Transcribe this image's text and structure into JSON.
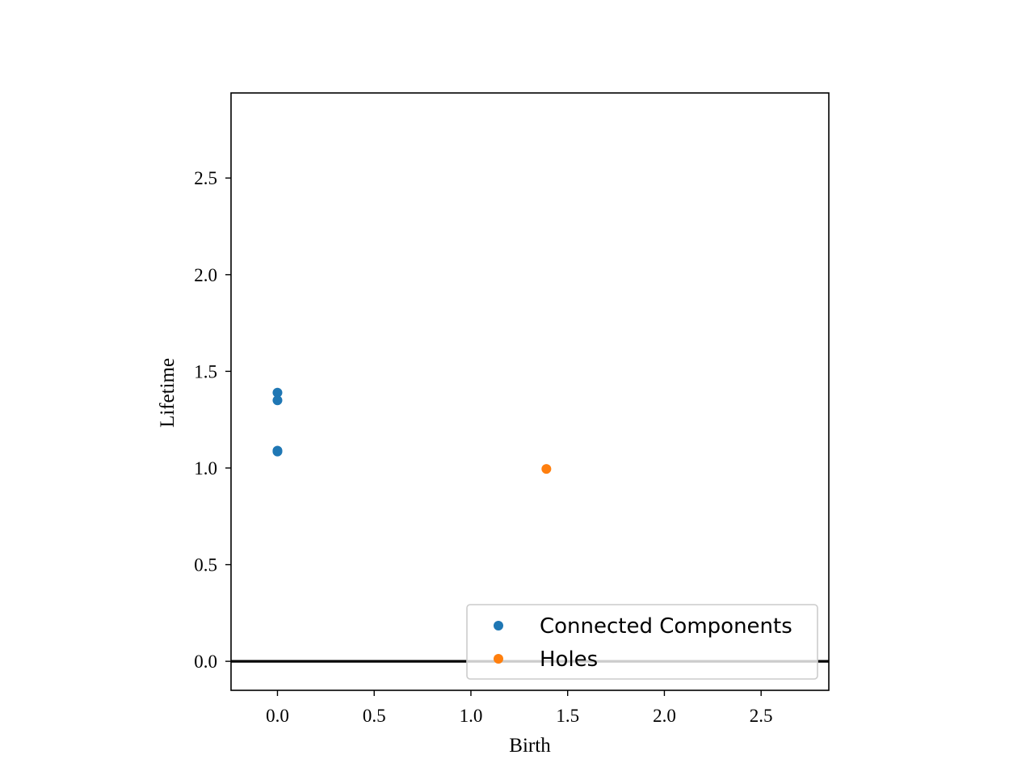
{
  "chart_data": {
    "type": "scatter",
    "title": "",
    "xlabel": "Birth",
    "ylabel": "Lifetime",
    "xlim": [
      -0.24,
      2.85
    ],
    "ylim": [
      -0.15,
      2.94
    ],
    "xticks": [
      "0.0",
      "0.5",
      "1.0",
      "1.5",
      "2.0",
      "2.5"
    ],
    "xtick_values": [
      0,
      0.5,
      1.0,
      1.5,
      2.0,
      2.5
    ],
    "yticks": [
      "0.0",
      "0.5",
      "1.0",
      "1.5",
      "2.0",
      "2.5"
    ],
    "ytick_values": [
      0,
      0.5,
      1.0,
      1.5,
      2.0,
      2.5
    ],
    "grid": false,
    "legend_position": "lower-right",
    "baseline_y": 0,
    "series": [
      {
        "name": "Connected Components",
        "color": "#1f77b4",
        "points": [
          {
            "x": 0,
            "y": 1.39
          },
          {
            "x": 0,
            "y": 1.35
          },
          {
            "x": 0,
            "y": 1.09
          },
          {
            "x": 0,
            "y": 1.085
          }
        ]
      },
      {
        "name": "Holes",
        "color": "#ff7f0e",
        "points": [
          {
            "x": 1.39,
            "y": 0.995
          }
        ]
      }
    ]
  }
}
